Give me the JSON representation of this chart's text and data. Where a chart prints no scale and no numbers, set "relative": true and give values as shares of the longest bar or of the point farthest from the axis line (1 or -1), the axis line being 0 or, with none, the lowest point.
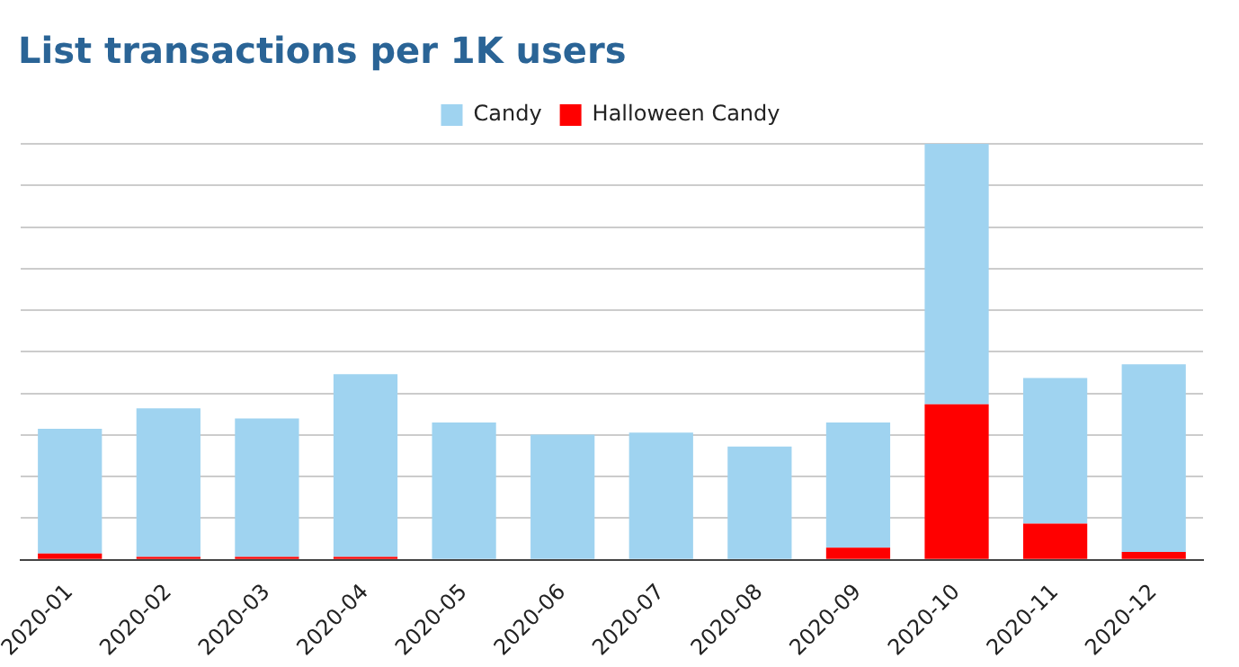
{
  "chart_data": {
    "type": "bar",
    "title": "List transactions per 1K users",
    "stacked": true,
    "relative": true,
    "grid": "y",
    "legend": "top",
    "categories": [
      "2020-01",
      "2020-02",
      "2020-03",
      "2020-04",
      "2020-05",
      "2020-06",
      "2020-07",
      "2020-08",
      "2020-09",
      "2020-10",
      "2020-11",
      "2020-12"
    ],
    "series": [
      {
        "name": "Halloween Candy",
        "color": "#ff0000",
        "values": [
          0.015,
          0.007,
          0.007,
          0.007,
          0,
          0,
          0,
          0,
          0.029,
          0.374,
          0.087,
          0.019
        ]
      },
      {
        "name": "Candy",
        "color": "#9fd3f0",
        "values": [
          0.3,
          0.357,
          0.333,
          0.439,
          0.33,
          0.301,
          0.306,
          0.272,
          0.301,
          0.626,
          0.35,
          0.451
        ]
      }
    ]
  }
}
